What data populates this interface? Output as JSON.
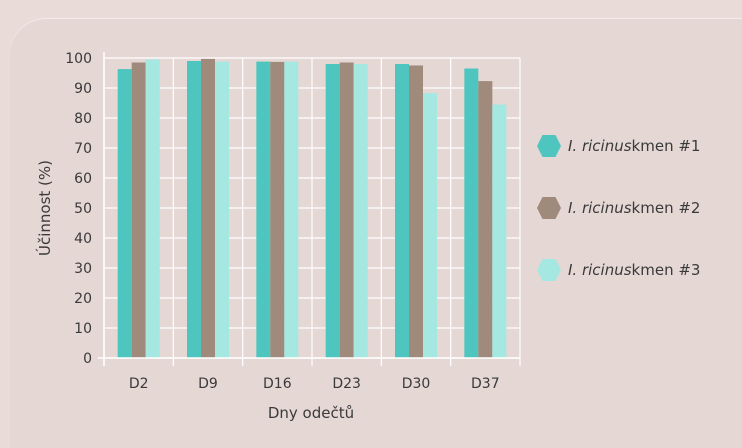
{
  "chart_data": {
    "type": "bar",
    "categories": [
      "D2",
      "D9",
      "D16",
      "D23",
      "D30",
      "D37"
    ],
    "series": [
      {
        "name_italic": "I. ricinus",
        "name_rest": " kmen #1",
        "color": "#4fc5bf",
        "values": [
          96.3,
          99.0,
          98.8,
          98.0,
          98.0,
          96.5
        ]
      },
      {
        "name_italic": "I. ricinus",
        "name_rest": " kmen #2",
        "color": "#a08a7c",
        "values": [
          98.5,
          99.7,
          98.7,
          98.5,
          97.5,
          92.3
        ]
      },
      {
        "name_italic": "I. ricinus",
        "name_rest": " kmen #3",
        "color": "#a5e8e2",
        "values": [
          99.5,
          98.8,
          98.8,
          98.0,
          88.3,
          84.5
        ]
      }
    ],
    "yticks": [
      "0",
      "10",
      "20",
      "30",
      "40",
      "50",
      "60",
      "70",
      "80",
      "90",
      "100"
    ],
    "ylim": [
      0,
      100
    ],
    "xlabel": "Dny odečtů",
    "ylabel": "Účinnost (%)",
    "grid": true,
    "legend_position": "right"
  }
}
